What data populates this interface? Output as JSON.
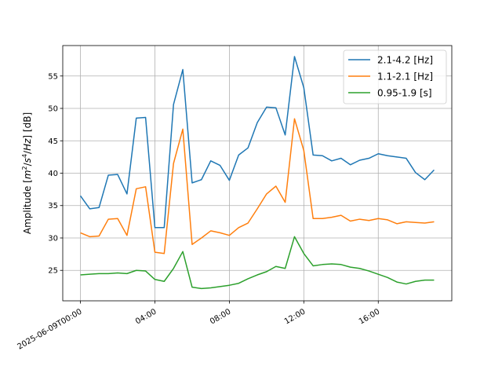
{
  "chart_data": {
    "type": "line",
    "title": "",
    "xlabel": "",
    "ylabel_parts": {
      "prefix": "Amplitude [",
      "m": "m",
      "m_exp": "2",
      "sep1": "/",
      "s": "s",
      "s_exp": "4",
      "sep2": "/",
      "hz": "Hz",
      "suffix": "] [dB]"
    },
    "grid": true,
    "legend_position": "top-right",
    "x_ticks": [
      {
        "hour": 0,
        "label": "2025-06-09T00:00"
      },
      {
        "hour": 4,
        "label": "04:00"
      },
      {
        "hour": 8,
        "label": "08:00"
      },
      {
        "hour": 12,
        "label": "12:00"
      },
      {
        "hour": 16,
        "label": "16:00"
      }
    ],
    "xlim_hours": [
      -0.95,
      19.95
    ],
    "y_ticks": [
      25,
      30,
      35,
      40,
      45,
      50,
      55
    ],
    "ylim": [
      20.3,
      59.7
    ],
    "x_hours": [
      0,
      0.5,
      1,
      1.5,
      2,
      2.5,
      3,
      3.5,
      4,
      4.5,
      5,
      5.5,
      6,
      6.5,
      7,
      7.5,
      8,
      8.5,
      9,
      9.5,
      10,
      10.5,
      11,
      11.5,
      12,
      12.5,
      13,
      13.5,
      14,
      14.5,
      15,
      15.5,
      16,
      16.5,
      17,
      17.5,
      18,
      18.5,
      19
    ],
    "series": [
      {
        "name": "2.1-4.2 [Hz]",
        "color": "#1f77b4",
        "values": [
          36.5,
          34.5,
          34.7,
          39.7,
          39.8,
          36.8,
          48.5,
          48.6,
          31.6,
          31.6,
          50.6,
          56.0,
          38.5,
          39.0,
          41.9,
          41.2,
          38.9,
          42.8,
          43.9,
          47.8,
          50.2,
          50.1,
          45.9,
          58.0,
          53.2,
          42.8,
          42.7,
          41.9,
          42.3,
          41.3,
          42.0,
          42.3,
          43.0,
          42.7,
          42.5,
          42.3,
          40.1,
          39.0,
          40.5
        ]
      },
      {
        "name": "1.1-2.1 [Hz]",
        "color": "#ff7f0e",
        "values": [
          30.8,
          30.2,
          30.3,
          32.9,
          33.0,
          30.4,
          37.6,
          37.9,
          27.8,
          27.6,
          41.5,
          46.8,
          29.0,
          30.0,
          31.1,
          30.8,
          30.4,
          31.6,
          32.3,
          34.5,
          36.8,
          38.0,
          35.5,
          48.4,
          43.5,
          33.0,
          33.0,
          33.2,
          33.5,
          32.6,
          32.9,
          32.7,
          33.0,
          32.8,
          32.2,
          32.5,
          32.4,
          32.3,
          32.5
        ]
      },
      {
        "name": "0.95-1.9 [s]",
        "color": "#2ca02c",
        "values": [
          24.3,
          24.4,
          24.5,
          24.5,
          24.6,
          24.5,
          25.0,
          24.9,
          23.6,
          23.3,
          25.3,
          27.9,
          22.4,
          22.2,
          22.3,
          22.5,
          22.7,
          23.0,
          23.7,
          24.3,
          24.8,
          25.6,
          25.3,
          30.2,
          27.6,
          25.7,
          25.9,
          26.0,
          25.9,
          25.5,
          25.3,
          24.9,
          24.4,
          23.9,
          23.2,
          22.9,
          23.3,
          23.5,
          23.5
        ]
      }
    ]
  }
}
